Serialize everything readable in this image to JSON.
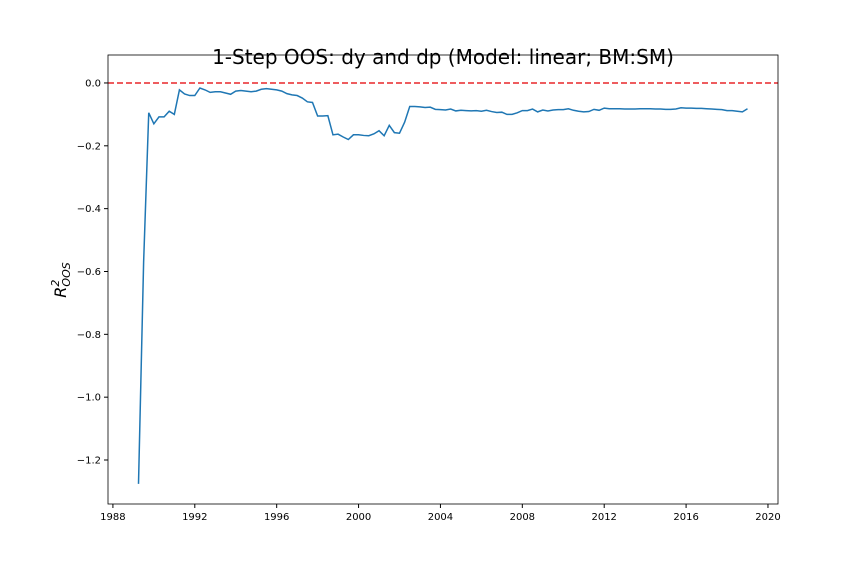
{
  "chart_data": {
    "type": "line",
    "title": "1-Step OOS: dy and dp (Model: linear; BM:SM)",
    "ylabel": {
      "base": "R",
      "sup": "2",
      "sub": "OOS"
    },
    "x": [
      1989.25,
      1989.5,
      1989.75,
      1990,
      1990.25,
      1990.5,
      1990.75,
      1991,
      1991.25,
      1991.5,
      1991.75,
      1992,
      1992.25,
      1992.5,
      1992.75,
      1993,
      1993.25,
      1993.5,
      1993.75,
      1994,
      1994.25,
      1994.5,
      1994.75,
      1995,
      1995.25,
      1995.5,
      1995.75,
      1996,
      1996.25,
      1996.5,
      1996.75,
      1997,
      1997.25,
      1997.5,
      1997.75,
      1998,
      1998.25,
      1998.5,
      1998.75,
      1999,
      1999.25,
      1999.5,
      1999.75,
      2000,
      2000.25,
      2000.5,
      2000.75,
      2001,
      2001.25,
      2001.5,
      2001.75,
      2002,
      2002.25,
      2002.5,
      2002.75,
      2003,
      2003.25,
      2003.5,
      2003.75,
      2004,
      2004.25,
      2004.5,
      2004.75,
      2005,
      2005.25,
      2005.5,
      2005.75,
      2006,
      2006.25,
      2006.5,
      2006.75,
      2007,
      2007.25,
      2007.5,
      2007.75,
      2008,
      2008.25,
      2008.5,
      2008.75,
      2009,
      2009.25,
      2009.5,
      2009.75,
      2010,
      2010.25,
      2010.5,
      2010.75,
      2011,
      2011.25,
      2011.5,
      2011.75,
      2012,
      2012.25,
      2012.5,
      2012.75,
      2013,
      2013.25,
      2013.5,
      2013.75,
      2014,
      2014.25,
      2014.5,
      2014.75,
      2015,
      2015.25,
      2015.5,
      2015.75,
      2016,
      2016.25,
      2016.5,
      2016.75,
      2017,
      2017.25,
      2017.5,
      2017.75,
      2018,
      2018.25,
      2018.5,
      2018.75,
      2019
    ],
    "series": [
      {
        "color": "#1f77b4",
        "values": [
          -1.276,
          -0.57,
          -0.095,
          -0.13,
          -0.108,
          -0.108,
          -0.09,
          -0.1,
          -0.022,
          -0.035,
          -0.04,
          -0.04,
          -0.016,
          -0.022,
          -0.03,
          -0.028,
          -0.028,
          -0.032,
          -0.036,
          -0.026,
          -0.024,
          -0.026,
          -0.028,
          -0.026,
          -0.02,
          -0.018,
          -0.02,
          -0.022,
          -0.026,
          -0.034,
          -0.038,
          -0.04,
          -0.048,
          -0.06,
          -0.062,
          -0.105,
          -0.105,
          -0.104,
          -0.165,
          -0.163,
          -0.172,
          -0.18,
          -0.165,
          -0.165,
          -0.167,
          -0.168,
          -0.162,
          -0.152,
          -0.168,
          -0.135,
          -0.158,
          -0.16,
          -0.125,
          -0.075,
          -0.075,
          -0.076,
          -0.078,
          -0.077,
          -0.084,
          -0.085,
          -0.086,
          -0.083,
          -0.089,
          -0.087,
          -0.088,
          -0.089,
          -0.088,
          -0.09,
          -0.087,
          -0.091,
          -0.094,
          -0.093,
          -0.1,
          -0.1,
          -0.095,
          -0.088,
          -0.088,
          -0.083,
          -0.092,
          -0.086,
          -0.089,
          -0.086,
          -0.085,
          -0.085,
          -0.082,
          -0.087,
          -0.09,
          -0.092,
          -0.091,
          -0.084,
          -0.087,
          -0.08,
          -0.082,
          -0.082,
          -0.082,
          -0.083,
          -0.083,
          -0.083,
          -0.082,
          -0.082,
          -0.082,
          -0.083,
          -0.083,
          -0.084,
          -0.084,
          -0.083,
          -0.079,
          -0.08,
          -0.08,
          -0.081,
          -0.081,
          -0.082,
          -0.083,
          -0.084,
          -0.085,
          -0.088,
          -0.088,
          -0.09,
          -0.092,
          -0.082
        ]
      }
    ],
    "reference_line": {
      "value": 0,
      "color": "#e8262a",
      "dashed": true
    },
    "xlim": [
      1987.76,
      2020.49
    ],
    "xticks": [
      1988,
      1992,
      1996,
      2000,
      2004,
      2008,
      2012,
      2016,
      2020
    ],
    "ylim": [
      -1.34,
      0.089
    ],
    "yticks": [
      {
        "value": 0,
        "label": "0.0"
      },
      {
        "value": -0.2,
        "label": "−0.2"
      },
      {
        "value": -0.4,
        "label": "−0.4"
      },
      {
        "value": -0.6,
        "label": "−0.6"
      },
      {
        "value": -0.8,
        "label": "−0.8"
      },
      {
        "value": -1.0,
        "label": "−1.0"
      },
      {
        "value": -1.2,
        "label": "−1.2"
      }
    ]
  }
}
